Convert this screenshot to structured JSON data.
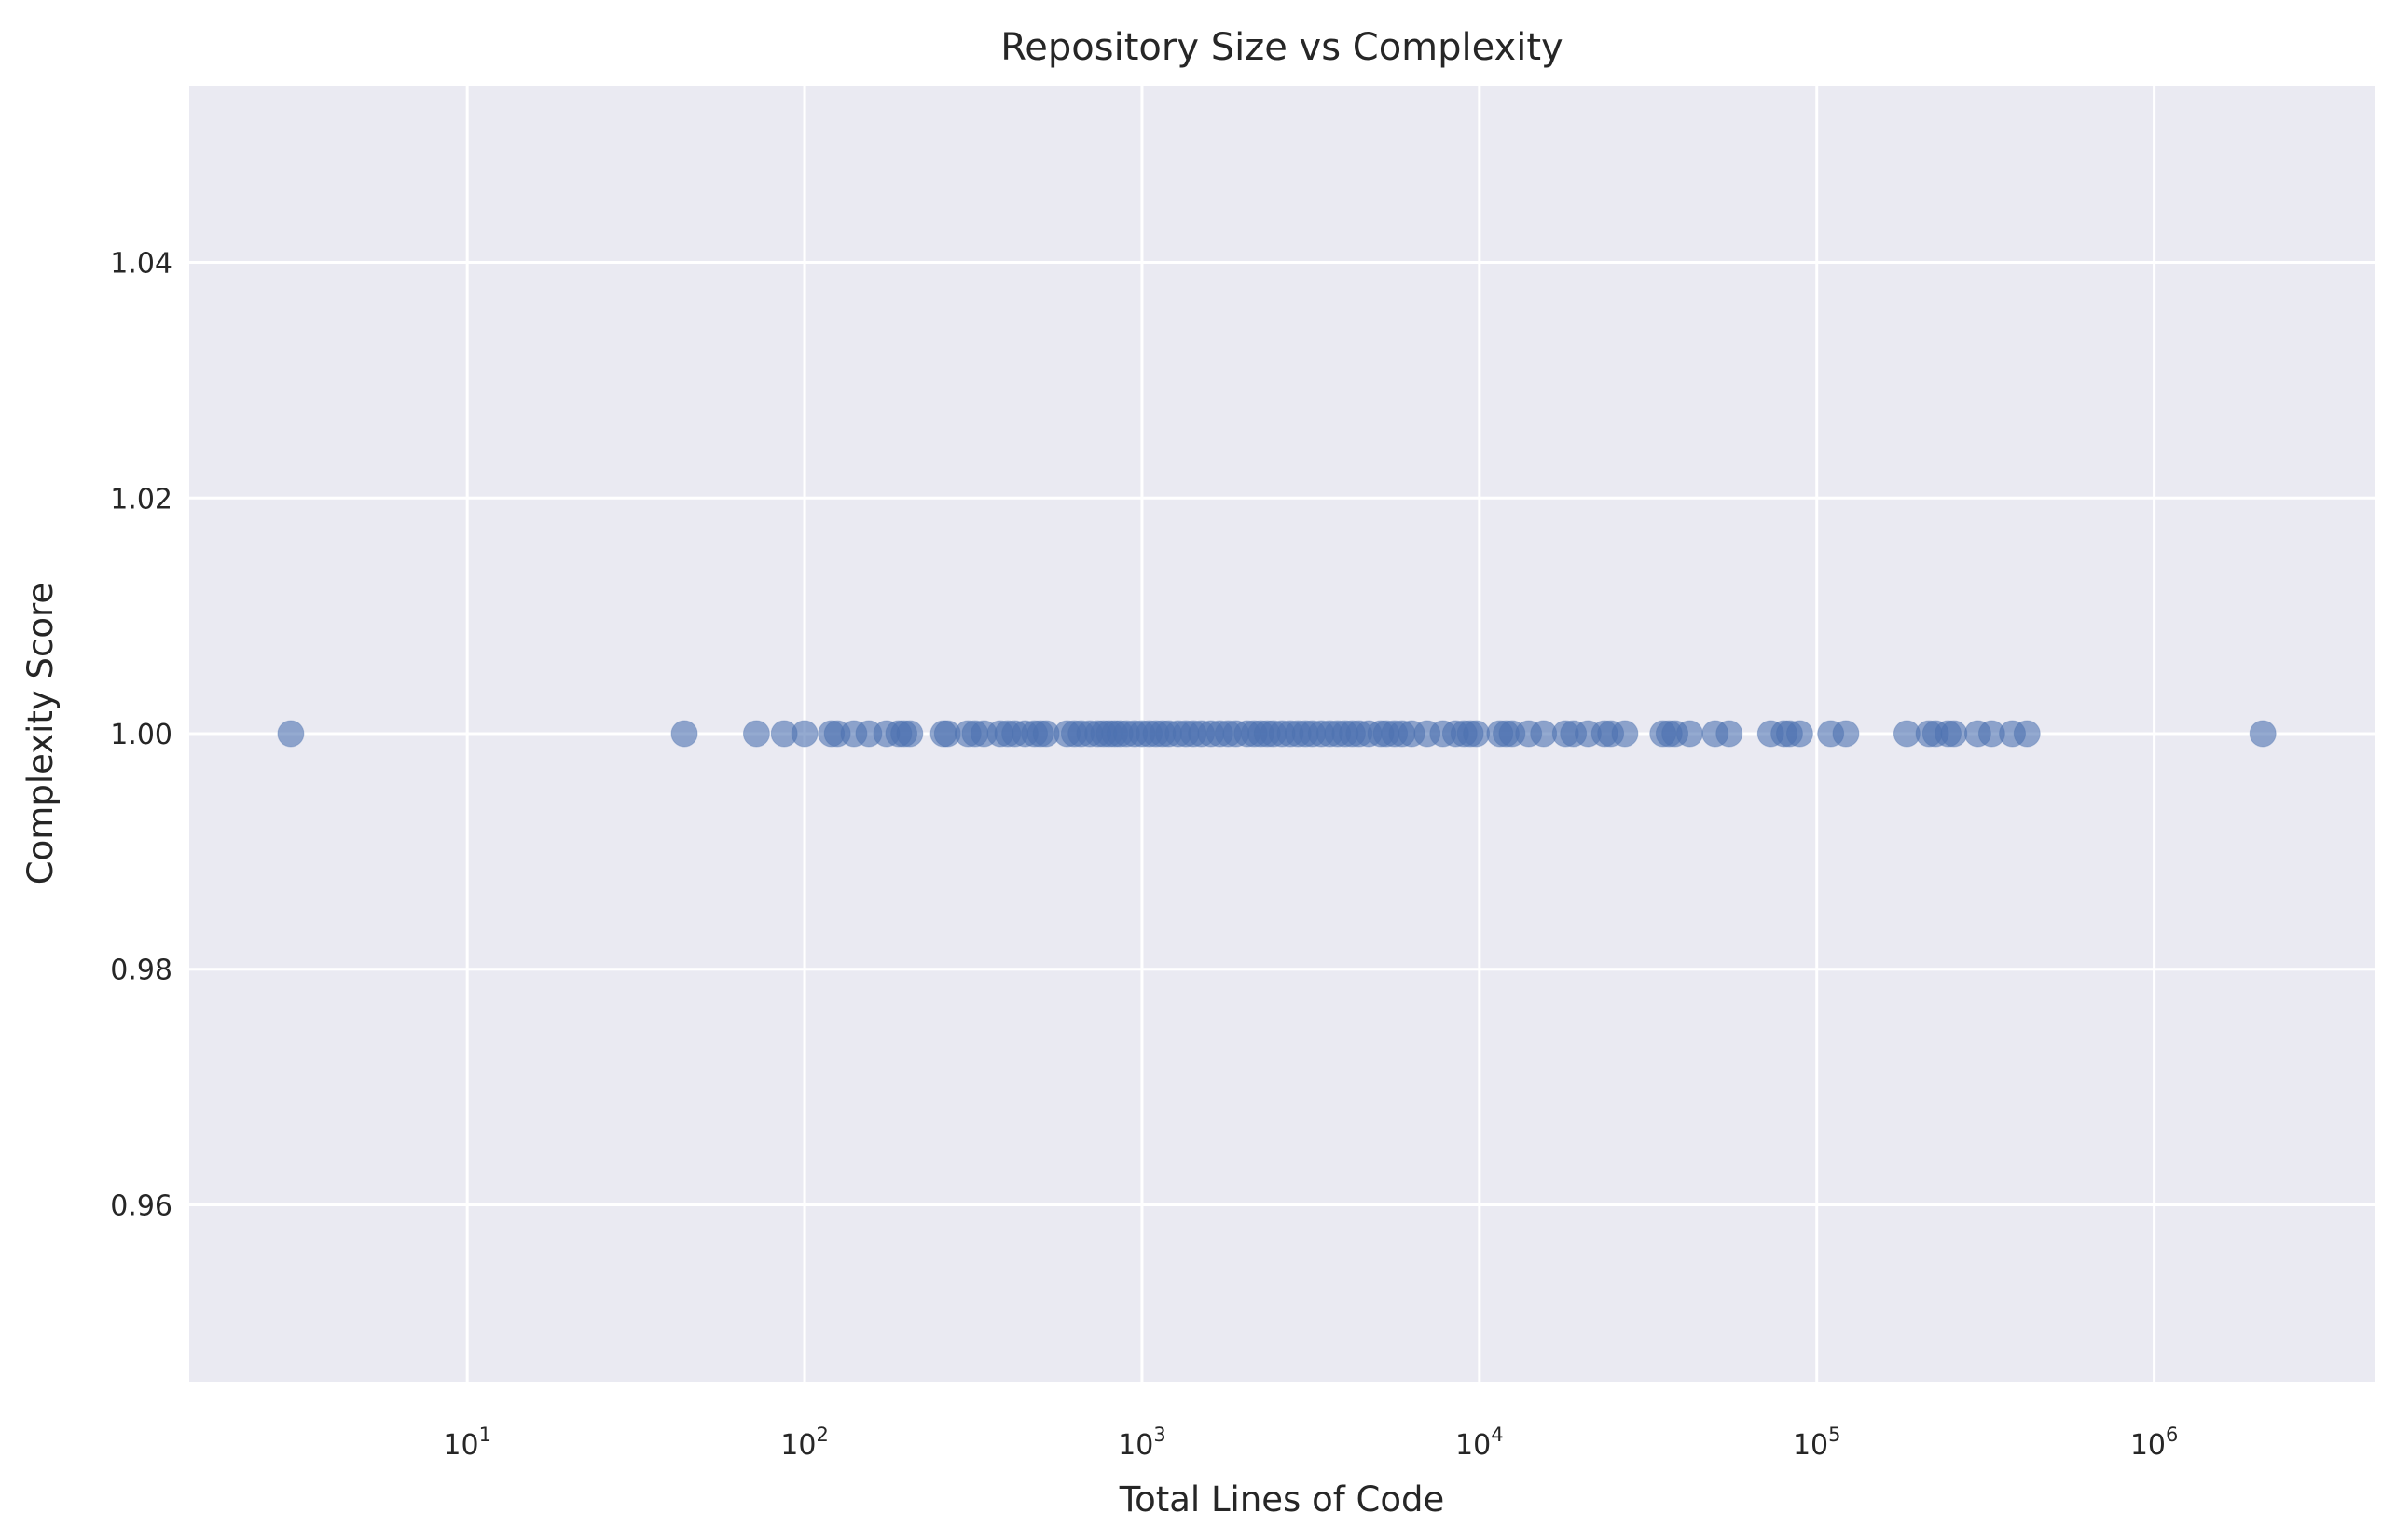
{
  "chart_data": {
    "type": "scatter",
    "title": "Repository Size vs Complexity",
    "xlabel": "Total Lines of Code",
    "ylabel": "Complexity Score",
    "xscale": "log",
    "xlim": [
      1.5,
      4500000
    ],
    "ylim": [
      0.945,
      1.055
    ],
    "xticks": [
      {
        "value": 10,
        "base": "10",
        "exp": "1"
      },
      {
        "value": 100,
        "base": "10",
        "exp": "2"
      },
      {
        "value": 1000,
        "base": "10",
        "exp": "3"
      },
      {
        "value": 10000,
        "base": "10",
        "exp": "4"
      },
      {
        "value": 100000,
        "base": "10",
        "exp": "5"
      },
      {
        "value": 1000000,
        "base": "10",
        "exp": "6"
      }
    ],
    "yticks": [
      {
        "value": 0.96,
        "label": "0.96"
      },
      {
        "value": 0.98,
        "label": "0.98"
      },
      {
        "value": 1.0,
        "label": "1.00"
      },
      {
        "value": 1.02,
        "label": "1.02"
      },
      {
        "value": 1.04,
        "label": "1.04"
      }
    ],
    "grid": true,
    "background": "#eaeaf2",
    "point_color": "#4c72b0",
    "point_alpha": 0.6,
    "y_value": 1.0,
    "x": [
      3,
      44,
      72,
      87,
      100,
      120,
      125,
      140,
      155,
      175,
      190,
      197,
      205,
      258,
      265,
      305,
      320,
      340,
      380,
      400,
      420,
      450,
      480,
      500,
      520,
      600,
      630,
      660,
      700,
      740,
      770,
      800,
      830,
      860,
      900,
      950,
      1000,
      1050,
      1100,
      1150,
      1200,
      1280,
      1350,
      1420,
      1500,
      1600,
      1700,
      1800,
      1900,
      2050,
      2150,
      2250,
      2350,
      2450,
      2600,
      2750,
      2900,
      3050,
      3200,
      3400,
      3600,
      3800,
      4000,
      4200,
      4400,
      4700,
      5100,
      5300,
      5600,
      5900,
      6300,
      7000,
      7800,
      8500,
      9000,
      9400,
      9800,
      11500,
      12000,
      12500,
      14000,
      15500,
      18000,
      19000,
      21000,
      23500,
      24500,
      27000,
      35000,
      36500,
      38000,
      42000,
      50000,
      55000,
      73000,
      80000,
      83000,
      89000,
      110000,
      122000,
      185000,
      215000,
      225000,
      245000,
      255000,
      300000,
      330000,
      380000,
      420000,
      2100000
    ]
  }
}
